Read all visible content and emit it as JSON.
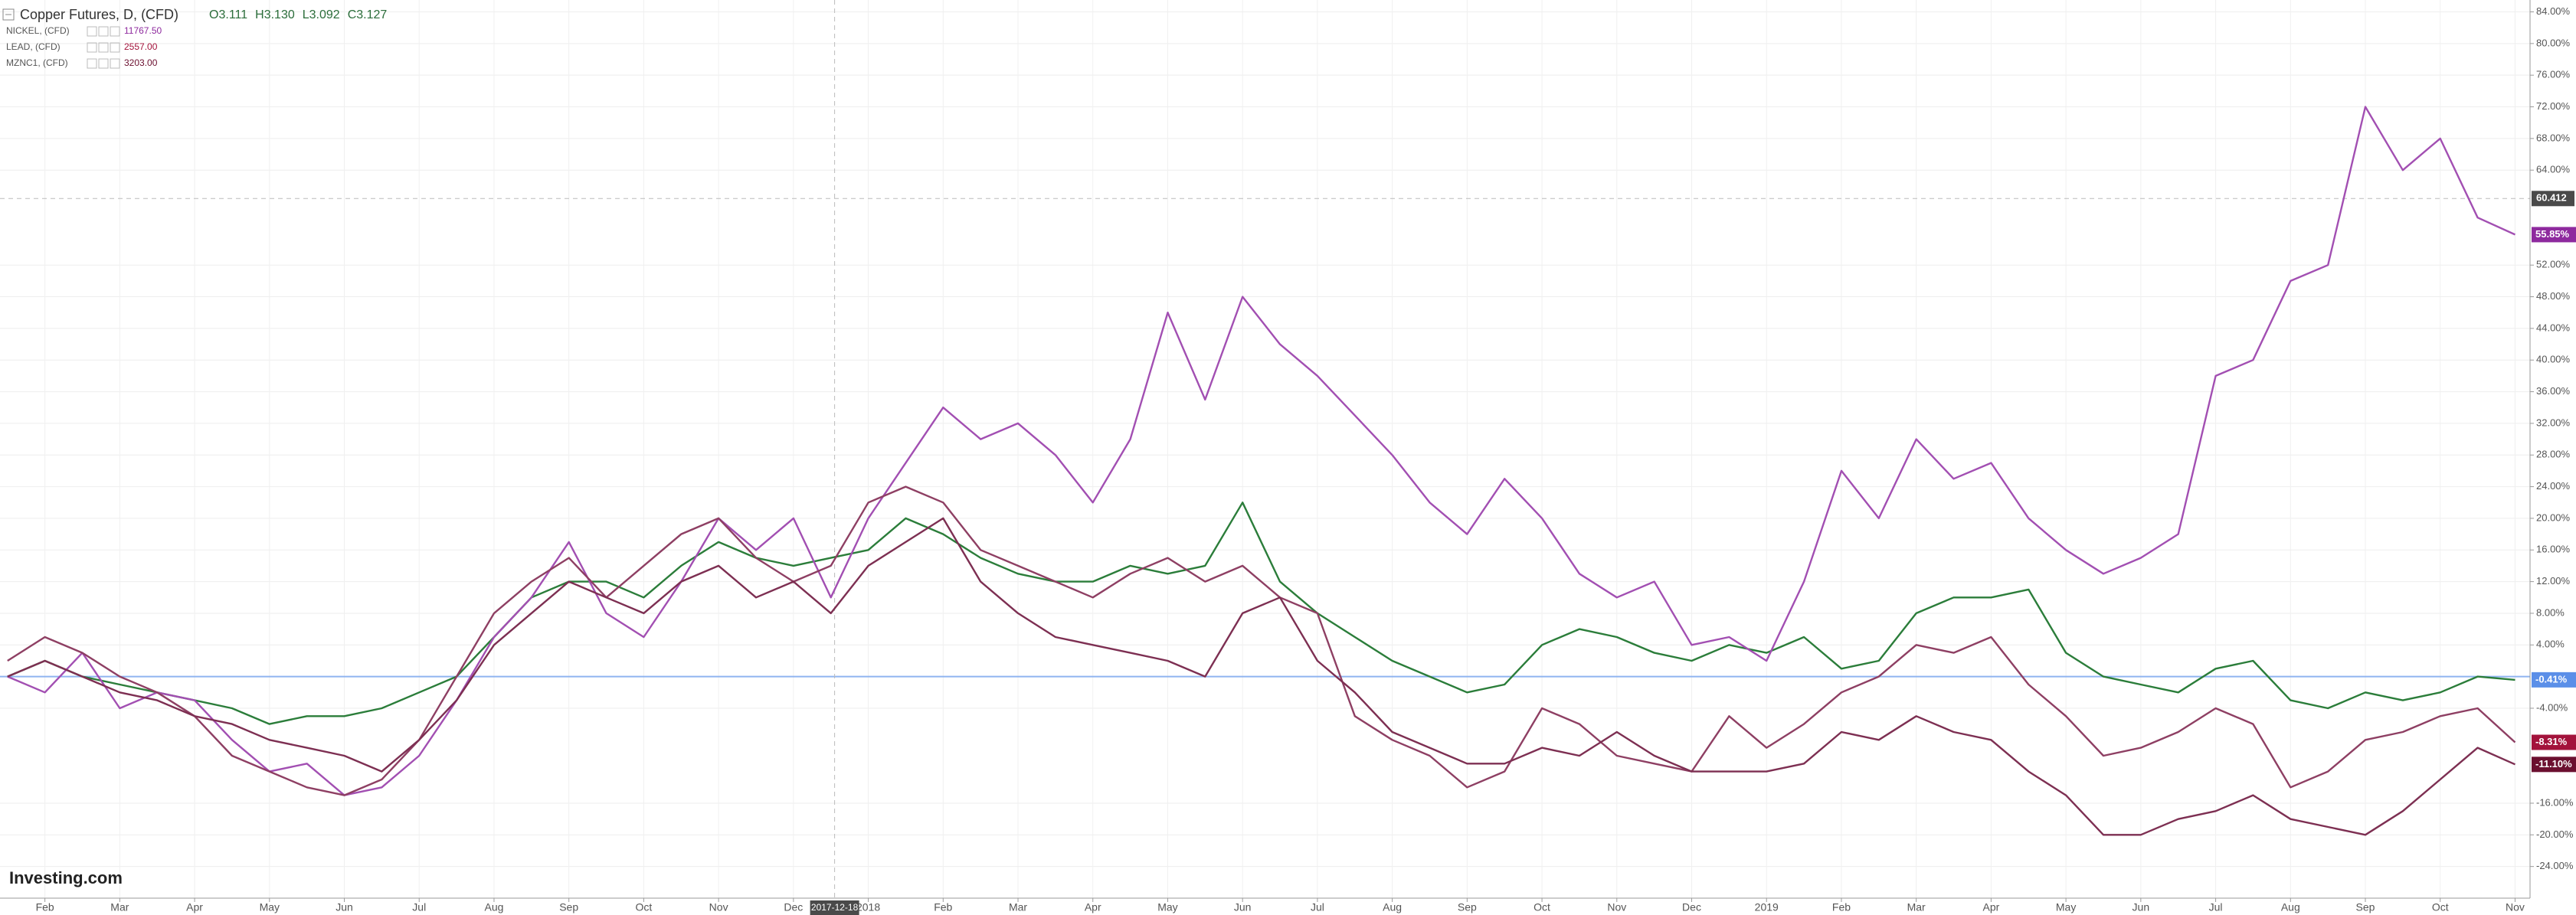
{
  "chart_data": {
    "type": "line",
    "title": "Copper Futures, D, (CFD)",
    "ohlc": [
      {
        "value": 3.111,
        "label": "O3.111"
      },
      {
        "value": 3.13,
        "label": "H3.130"
      },
      {
        "value": 3.092,
        "label": "L3.092"
      },
      {
        "value": 3.127,
        "label": "C3.127"
      }
    ],
    "watermark": "Investing.com",
    "x": [
      0.5,
      1,
      1.5,
      2,
      2.5,
      3,
      3.5,
      4,
      4.5,
      5,
      5.5,
      6,
      6.5,
      7,
      7.5,
      8,
      8.5,
      9,
      9.5,
      10,
      10.5,
      11,
      11.5,
      12,
      12.5,
      13,
      13.5,
      14,
      14.5,
      15,
      15.5,
      16,
      16.5,
      17,
      17.5,
      18,
      18.5,
      19,
      19.5,
      20,
      20.5,
      21,
      21.5,
      22,
      22.5,
      23,
      23.5,
      24,
      24.5,
      25,
      25.5,
      26,
      26.5,
      27,
      27.5,
      28,
      28.5,
      29,
      29.5,
      30,
      30.5,
      31,
      31.5,
      32,
      32.5,
      33,
      33.5,
      34
    ],
    "xlim": [
      0.4,
      34.2
    ],
    "xticks": [
      {
        "value": 1,
        "label": "Feb"
      },
      {
        "value": 2,
        "label": "Mar"
      },
      {
        "value": 3,
        "label": "Apr"
      },
      {
        "value": 4,
        "label": "May"
      },
      {
        "value": 5,
        "label": "Jun"
      },
      {
        "value": 6,
        "label": "Jul"
      },
      {
        "value": 7,
        "label": "Aug"
      },
      {
        "value": 8,
        "label": "Sep"
      },
      {
        "value": 9,
        "label": "Oct"
      },
      {
        "value": 10,
        "label": "Nov"
      },
      {
        "value": 11,
        "label": "Dec"
      },
      {
        "value": 12,
        "label": "2018"
      },
      {
        "value": 13,
        "label": "Feb"
      },
      {
        "value": 14,
        "label": "Mar"
      },
      {
        "value": 15,
        "label": "Apr"
      },
      {
        "value": 16,
        "label": "May"
      },
      {
        "value": 17,
        "label": "Jun"
      },
      {
        "value": 18,
        "label": "Jul"
      },
      {
        "value": 19,
        "label": "Aug"
      },
      {
        "value": 20,
        "label": "Sep"
      },
      {
        "value": 21,
        "label": "Oct"
      },
      {
        "value": 22,
        "label": "Nov"
      },
      {
        "value": 23,
        "label": "Dec"
      },
      {
        "value": 24,
        "label": "2019"
      },
      {
        "value": 25,
        "label": "Feb"
      },
      {
        "value": 26,
        "label": "Mar"
      },
      {
        "value": 27,
        "label": "Apr"
      },
      {
        "value": 28,
        "label": "May"
      },
      {
        "value": 29,
        "label": "Jun"
      },
      {
        "value": 30,
        "label": "Jul"
      },
      {
        "value": 31,
        "label": "Aug"
      },
      {
        "value": 32,
        "label": "Sep"
      },
      {
        "value": 33,
        "label": "Oct"
      },
      {
        "value": 34,
        "label": "Nov"
      }
    ],
    "ylim": [
      -28,
      85.5
    ],
    "yticks": [
      {
        "value": 84,
        "label": "84.00%"
      },
      {
        "value": 80,
        "label": "80.00%"
      },
      {
        "value": 76,
        "label": "76.00%"
      },
      {
        "value": 72,
        "label": "72.00%"
      },
      {
        "value": 68,
        "label": "68.00%"
      },
      {
        "value": 64,
        "label": "64.00%"
      },
      {
        "value": 52,
        "label": "52.00%"
      },
      {
        "value": 48,
        "label": "48.00%"
      },
      {
        "value": 44,
        "label": "44.00%"
      },
      {
        "value": 40,
        "label": "40.00%"
      },
      {
        "value": 36,
        "label": "36.00%"
      },
      {
        "value": 32,
        "label": "32.00%"
      },
      {
        "value": 28,
        "label": "28.00%"
      },
      {
        "value": 24,
        "label": "24.00%"
      },
      {
        "value": 20,
        "label": "20.00%"
      },
      {
        "value": 16,
        "label": "16.00%"
      },
      {
        "value": 12,
        "label": "12.00%"
      },
      {
        "value": 8,
        "label": "8.00%"
      },
      {
        "value": 4,
        "label": "4.00%"
      },
      {
        "value": -4,
        "label": "-4.00%"
      },
      {
        "value": -16,
        "label": "-16.00%"
      },
      {
        "value": -20,
        "label": "-20.00%"
      },
      {
        "value": -24,
        "label": "-24.00%"
      }
    ],
    "grid": true,
    "baseline": 0,
    "baseline_color": "#8fb4f0",
    "crosshair": {
      "x": {
        "value": 11.55,
        "label": "2017-12-18"
      },
      "y": {
        "value": 60.412,
        "label": "60.412"
      }
    },
    "series": [
      {
        "name": "Copper Futures, D, (CFD)",
        "color": "#2b7d3a",
        "end_label": "-0.41%",
        "end_color": "#5b8fe8",
        "values": [
          0,
          2,
          0,
          -1,
          -2,
          -3,
          -4,
          -6,
          -5,
          -5,
          -4,
          -2,
          0,
          5,
          10,
          12,
          12,
          10,
          14,
          17,
          15,
          14,
          15,
          16,
          20,
          18,
          15,
          13,
          12,
          12,
          14,
          13,
          14,
          22,
          12,
          8,
          5,
          2,
          0,
          -2,
          -1,
          4,
          6,
          5,
          3,
          2,
          4,
          3,
          5,
          1,
          2,
          8,
          10,
          10,
          11,
          3,
          0,
          -1,
          -2,
          1,
          2,
          -3,
          -4,
          -2,
          -3,
          -2,
          0,
          -0.41
        ]
      },
      {
        "name": "NICKEL, (CFD)",
        "legend_value": "11767.50",
        "color": "#a24fb2",
        "end_label": "55.85%",
        "end_color": "#8e2a9e",
        "values": [
          0,
          -2,
          3,
          -4,
          -2,
          -3,
          -8,
          -12,
          -11,
          -15,
          -14,
          -10,
          -3,
          5,
          10,
          17,
          8,
          5,
          12,
          20,
          16,
          20,
          10,
          20,
          27,
          34,
          30,
          32,
          28,
          22,
          30,
          46,
          35,
          48,
          42,
          38,
          33,
          28,
          22,
          18,
          25,
          20,
          13,
          10,
          12,
          4,
          5,
          2,
          12,
          26,
          20,
          30,
          25,
          27,
          20,
          16,
          13,
          15,
          18,
          38,
          40,
          50,
          52,
          72,
          64,
          68,
          58,
          55.85
        ]
      },
      {
        "name": "LEAD, (CFD)",
        "legend_value": "2557.00",
        "color": "#8e3f63",
        "end_label": "-8.31%",
        "end_color": "#a3123b",
        "values": [
          2,
          5,
          3,
          0,
          -2,
          -5,
          -10,
          -12,
          -14,
          -15,
          -13,
          -8,
          0,
          8,
          12,
          15,
          10,
          14,
          18,
          20,
          15,
          12,
          14,
          22,
          24,
          22,
          16,
          14,
          12,
          10,
          13,
          15,
          12,
          14,
          10,
          8,
          -5,
          -8,
          -10,
          -14,
          -12,
          -4,
          -6,
          -10,
          -11,
          -12,
          -5,
          -9,
          -6,
          -2,
          0,
          4,
          3,
          5,
          -1,
          -5,
          -10,
          -9,
          -7,
          -4,
          -6,
          -14,
          -12,
          -8,
          -7,
          -5,
          -4,
          -8.31
        ]
      },
      {
        "name": "MZNC1, (CFD)",
        "legend_value": "3203.00",
        "color": "#7d2f52",
        "end_label": "-11.10%",
        "end_color": "#6b0f2f",
        "values": [
          0,
          2,
          0,
          -2,
          -3,
          -5,
          -6,
          -8,
          -9,
          -10,
          -12,
          -8,
          -3,
          4,
          8,
          12,
          10,
          8,
          12,
          14,
          10,
          12,
          8,
          14,
          17,
          20,
          12,
          8,
          5,
          4,
          3,
          2,
          0,
          8,
          10,
          2,
          -2,
          -7,
          -9,
          -11,
          -11,
          -9,
          -10,
          -7,
          -10,
          -12,
          -12,
          -12,
          -11,
          -7,
          -8,
          -5,
          -7,
          -8,
          -12,
          -15,
          -20,
          -20,
          -18,
          -17,
          -15,
          -18,
          -19,
          -20,
          -17,
          -13,
          -9,
          -11.1
        ]
      }
    ]
  }
}
